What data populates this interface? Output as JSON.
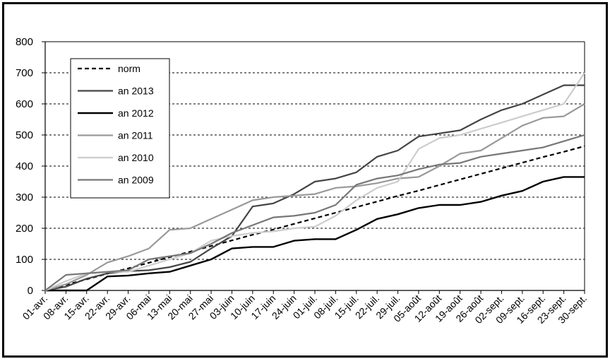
{
  "chart_data": {
    "type": "line",
    "title": "",
    "xlabel": "",
    "ylabel": "",
    "ylim": [
      0,
      800
    ],
    "yticks": [
      0,
      100,
      200,
      300,
      400,
      500,
      600,
      700,
      800
    ],
    "grid": "horizontal dashed",
    "legend_position": "top-left",
    "categories": [
      "01-avr.",
      "08-avr.",
      "15-avr.",
      "22-avr.",
      "29-avr.",
      "06-mai",
      "13-mai",
      "20-mai",
      "27-mai",
      "03-juin",
      "10-juin",
      "17-juin",
      "24-juin",
      "01-juil.",
      "08-juil.",
      "15-juil.",
      "22-juil.",
      "29-juil.",
      "05-août",
      "12-août",
      "19-août",
      "26-août",
      "02-sept.",
      "09-sept.",
      "16-sept.",
      "23-sept.",
      "30-sept."
    ],
    "series": [
      {
        "name": "norm",
        "style": "dashed",
        "color": "#000000",
        "width": 2.2,
        "values": [
          0,
          18,
          36,
          54,
          71,
          89,
          107,
          125,
          143,
          161,
          179,
          196,
          214,
          232,
          250,
          268,
          286,
          304,
          321,
          339,
          357,
          375,
          393,
          411,
          429,
          446,
          464
        ]
      },
      {
        "name": "an 2013",
        "style": "solid",
        "color": "#444444",
        "width": 2.2,
        "values": [
          0,
          12,
          38,
          55,
          62,
          65,
          75,
          92,
          135,
          175,
          270,
          280,
          310,
          350,
          360,
          380,
          430,
          450,
          495,
          505,
          515,
          550,
          580,
          600,
          630,
          660,
          660
        ]
      },
      {
        "name": "an 2012",
        "style": "solid",
        "color": "#000000",
        "width": 2.4,
        "values": [
          0,
          0,
          0,
          45,
          48,
          55,
          60,
          80,
          100,
          135,
          140,
          140,
          160,
          165,
          165,
          195,
          230,
          245,
          265,
          275,
          275,
          285,
          305,
          320,
          350,
          365,
          365
        ]
      },
      {
        "name": "an 2011",
        "style": "solid",
        "color": "#999999",
        "width": 2.2,
        "values": [
          0,
          20,
          50,
          90,
          110,
          135,
          195,
          200,
          230,
          260,
          290,
          300,
          305,
          310,
          330,
          335,
          345,
          360,
          365,
          400,
          440,
          450,
          490,
          530,
          555,
          560,
          600
        ]
      },
      {
        "name": "an 2010",
        "style": "solid",
        "color": "#cccccc",
        "width": 2.2,
        "values": [
          0,
          30,
          55,
          60,
          60,
          80,
          100,
          120,
          160,
          175,
          185,
          190,
          200,
          205,
          240,
          290,
          330,
          350,
          455,
          490,
          500,
          520,
          540,
          560,
          580,
          600,
          700
        ]
      },
      {
        "name": "an 2009",
        "style": "solid",
        "color": "#777777",
        "width": 2.2,
        "values": [
          0,
          50,
          55,
          60,
          65,
          100,
          110,
          120,
          150,
          185,
          210,
          235,
          240,
          250,
          275,
          340,
          360,
          370,
          390,
          405,
          410,
          430,
          440,
          450,
          460,
          480,
          500
        ]
      }
    ]
  }
}
